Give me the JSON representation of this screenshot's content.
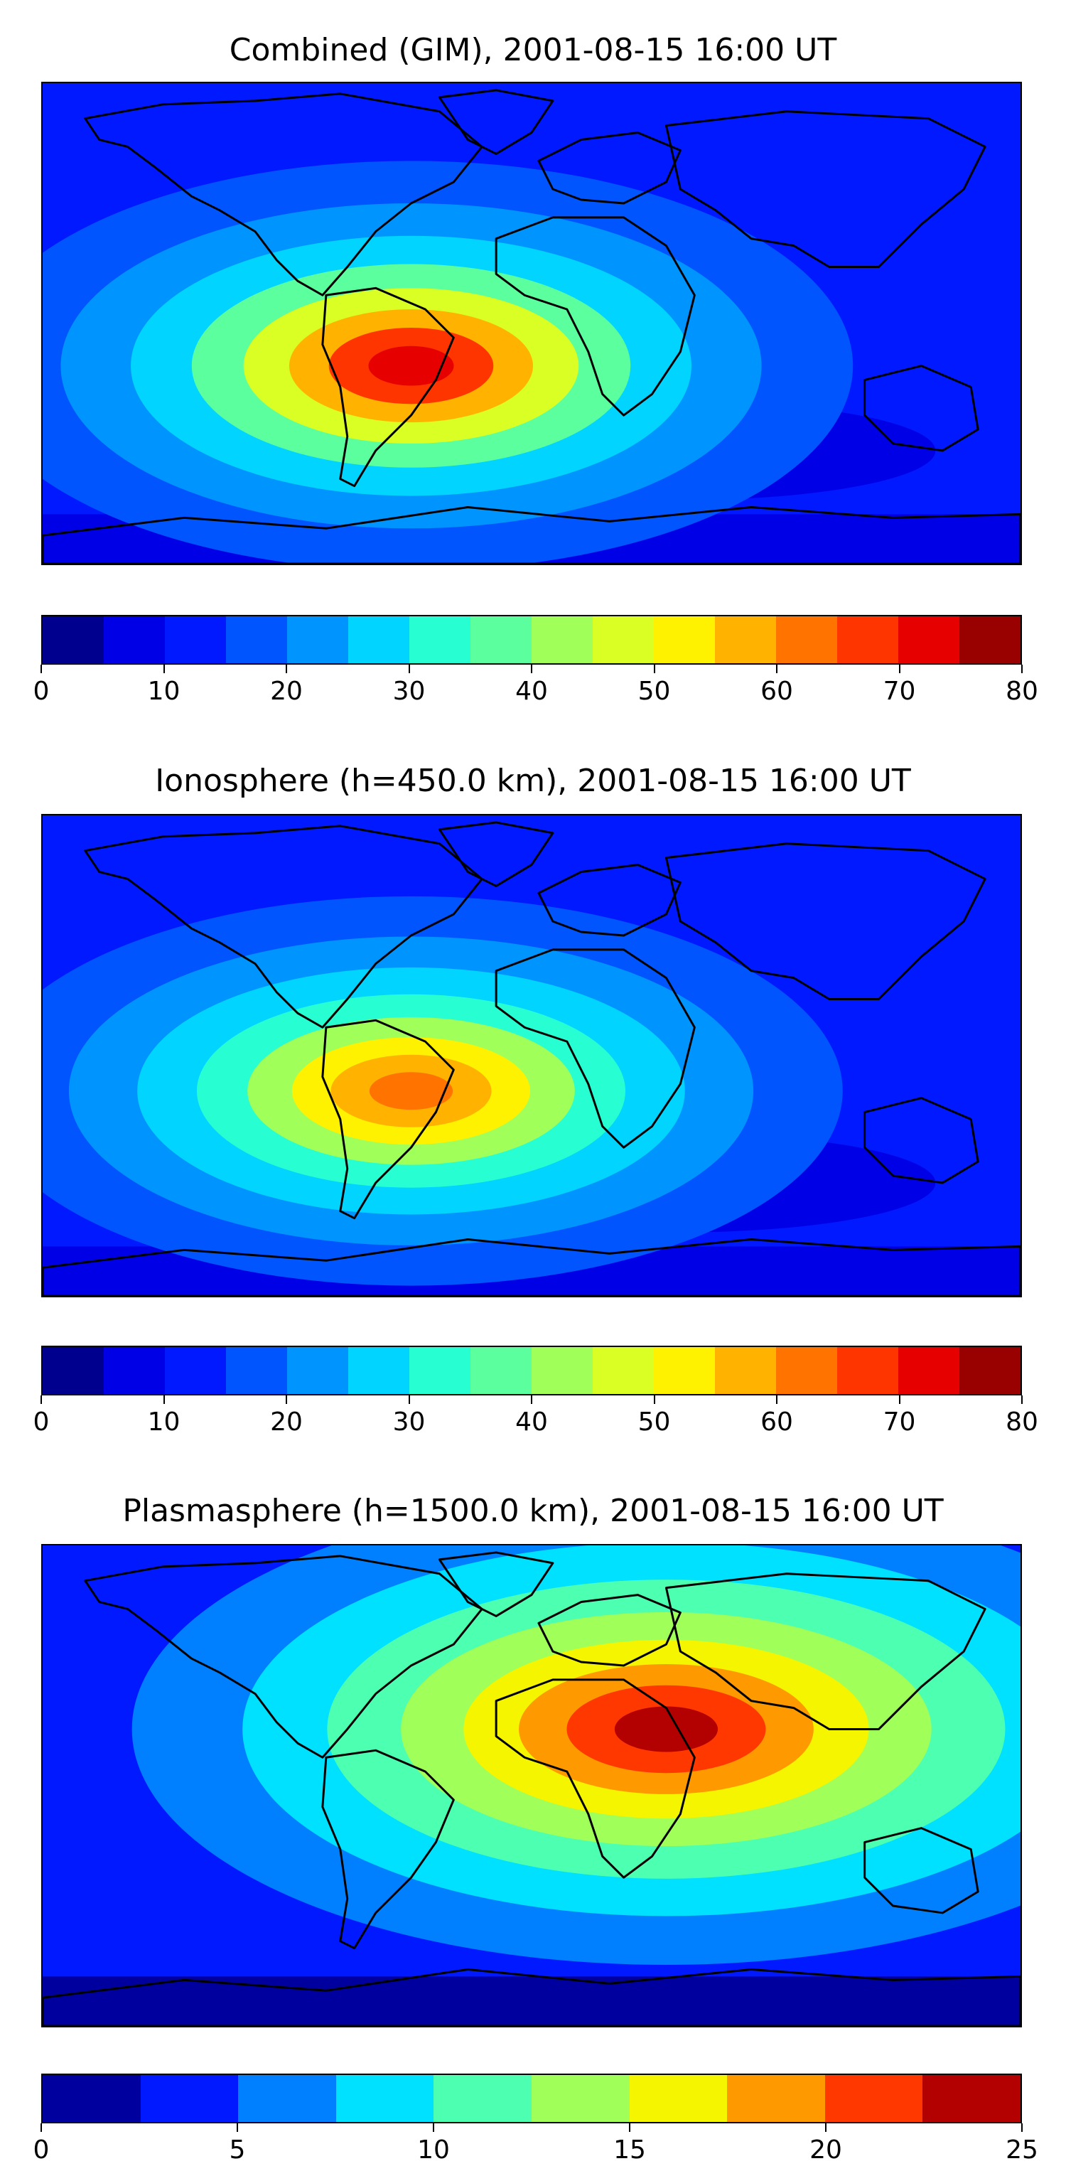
{
  "panels": [
    {
      "title": "Combined (GIM), 2001-08-15 16:00 UT",
      "colorbar": {
        "min": 0,
        "max": 80,
        "ticks": [
          "0",
          "10",
          "20",
          "30",
          "40",
          "50",
          "60",
          "70",
          "80"
        ],
        "colors": [
          "#00008f",
          "#0000e6",
          "#0019ff",
          "#0055ff",
          "#0094ff",
          "#00d4ff",
          "#27ffd2",
          "#5bff9e",
          "#a0ff59",
          "#d9ff24",
          "#fff200",
          "#ffb300",
          "#ff7300",
          "#ff3500",
          "#e60000",
          "#990000"
        ]
      },
      "map_levels": {
        "background": "#0019ff",
        "band_low": "#0055ff",
        "band_mid": "#0094ff",
        "band_high": "#00d4ff",
        "peak_ring1": "#5bff9e",
        "peak_ring2": "#d9ff24",
        "peak_ring3": "#ffb300",
        "peak_ring4": "#ff3500",
        "peak_core": "#e60000",
        "trough": "#0000e6"
      }
    },
    {
      "title": "Ionosphere  (h=450.0 km), 2001-08-15 16:00 UT",
      "colorbar": {
        "min": 0,
        "max": 80,
        "ticks": [
          "0",
          "10",
          "20",
          "30",
          "40",
          "50",
          "60",
          "70",
          "80"
        ],
        "colors": [
          "#00008f",
          "#0000e6",
          "#0019ff",
          "#0055ff",
          "#0094ff",
          "#00d4ff",
          "#27ffd2",
          "#5bff9e",
          "#a0ff59",
          "#d9ff24",
          "#fff200",
          "#ffb300",
          "#ff7300",
          "#ff3500",
          "#e60000",
          "#990000"
        ]
      },
      "map_levels": {
        "background": "#0019ff",
        "band_low": "#0055ff",
        "band_mid": "#0094ff",
        "band_high": "#00d4ff",
        "peak_ring1": "#27ffd2",
        "peak_ring2": "#a0ff59",
        "peak_ring3": "#fff200",
        "peak_ring4": "#ffb300",
        "peak_core": "#ff7300",
        "trough": "#0000e6"
      }
    },
    {
      "title": "Plasmasphere (h=1500.0 km), 2001-08-15 16:00 UT",
      "colorbar": {
        "min": 0,
        "max": 25,
        "ticks": [
          "0",
          "5",
          "10",
          "15",
          "20",
          "25"
        ],
        "colors": [
          "#00009f",
          "#0019ff",
          "#0080ff",
          "#00e0ff",
          "#4dffb0",
          "#a0ff59",
          "#f5f500",
          "#ff9900",
          "#ff3800",
          "#b30000"
        ]
      },
      "map_levels": {
        "background": "#0019ff",
        "band_low": "#0080ff",
        "band_mid": "#00e0ff",
        "band_high": "#4dffb0",
        "peak_ring1": "#a0ff59",
        "peak_ring2": "#f5f500",
        "peak_ring3": "#ff9900",
        "peak_ring4": "#ff3800",
        "peak_core": "#b30000",
        "trough": "#00009f"
      }
    }
  ]
}
